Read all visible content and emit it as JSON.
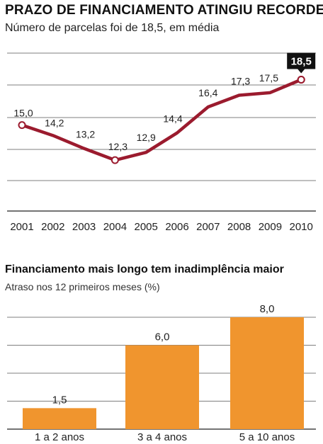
{
  "chart_data": [
    {
      "type": "line",
      "title": "PRAZO DE FINANCIAMENTO ATINGIU RECORDE",
      "subtitle": "Número de parcelas foi de 18,5, em média",
      "x": [
        "2001",
        "2002",
        "2003",
        "2004",
        "2005",
        "2006",
        "2007",
        "2008",
        "2009",
        "2010"
      ],
      "labels": [
        "15,0",
        "14,2",
        "13,2",
        "12,3",
        "12,9",
        "14,4",
        "16,4",
        "17,3",
        "17,5",
        "18,5"
      ],
      "series": [
        {
          "values": [
            15.0,
            14.2,
            13.2,
            12.3,
            12.9,
            14.4,
            16.4,
            17.3,
            17.5,
            18.5
          ]
        }
      ],
      "highlight_label": "18,5",
      "ylim": [
        11,
        20.5
      ],
      "grid": true,
      "colors": {
        "line": "#9b1b2e",
        "highlight_bg": "#111111"
      }
    },
    {
      "type": "bar",
      "title": "Financiamento mais longo tem inadimplência maior",
      "subtitle": "Atraso nos 12 primeiros meses (%)",
      "categories": [
        "1 a 2 anos",
        "3 a 4 anos",
        "5 a 10 anos"
      ],
      "values": [
        1.5,
        6.0,
        8.0
      ],
      "labels": [
        "1,5",
        "6,0",
        "8,0"
      ],
      "ylim": [
        0,
        10
      ],
      "grid": true,
      "colors": {
        "bar": "#f0952e"
      }
    }
  ]
}
